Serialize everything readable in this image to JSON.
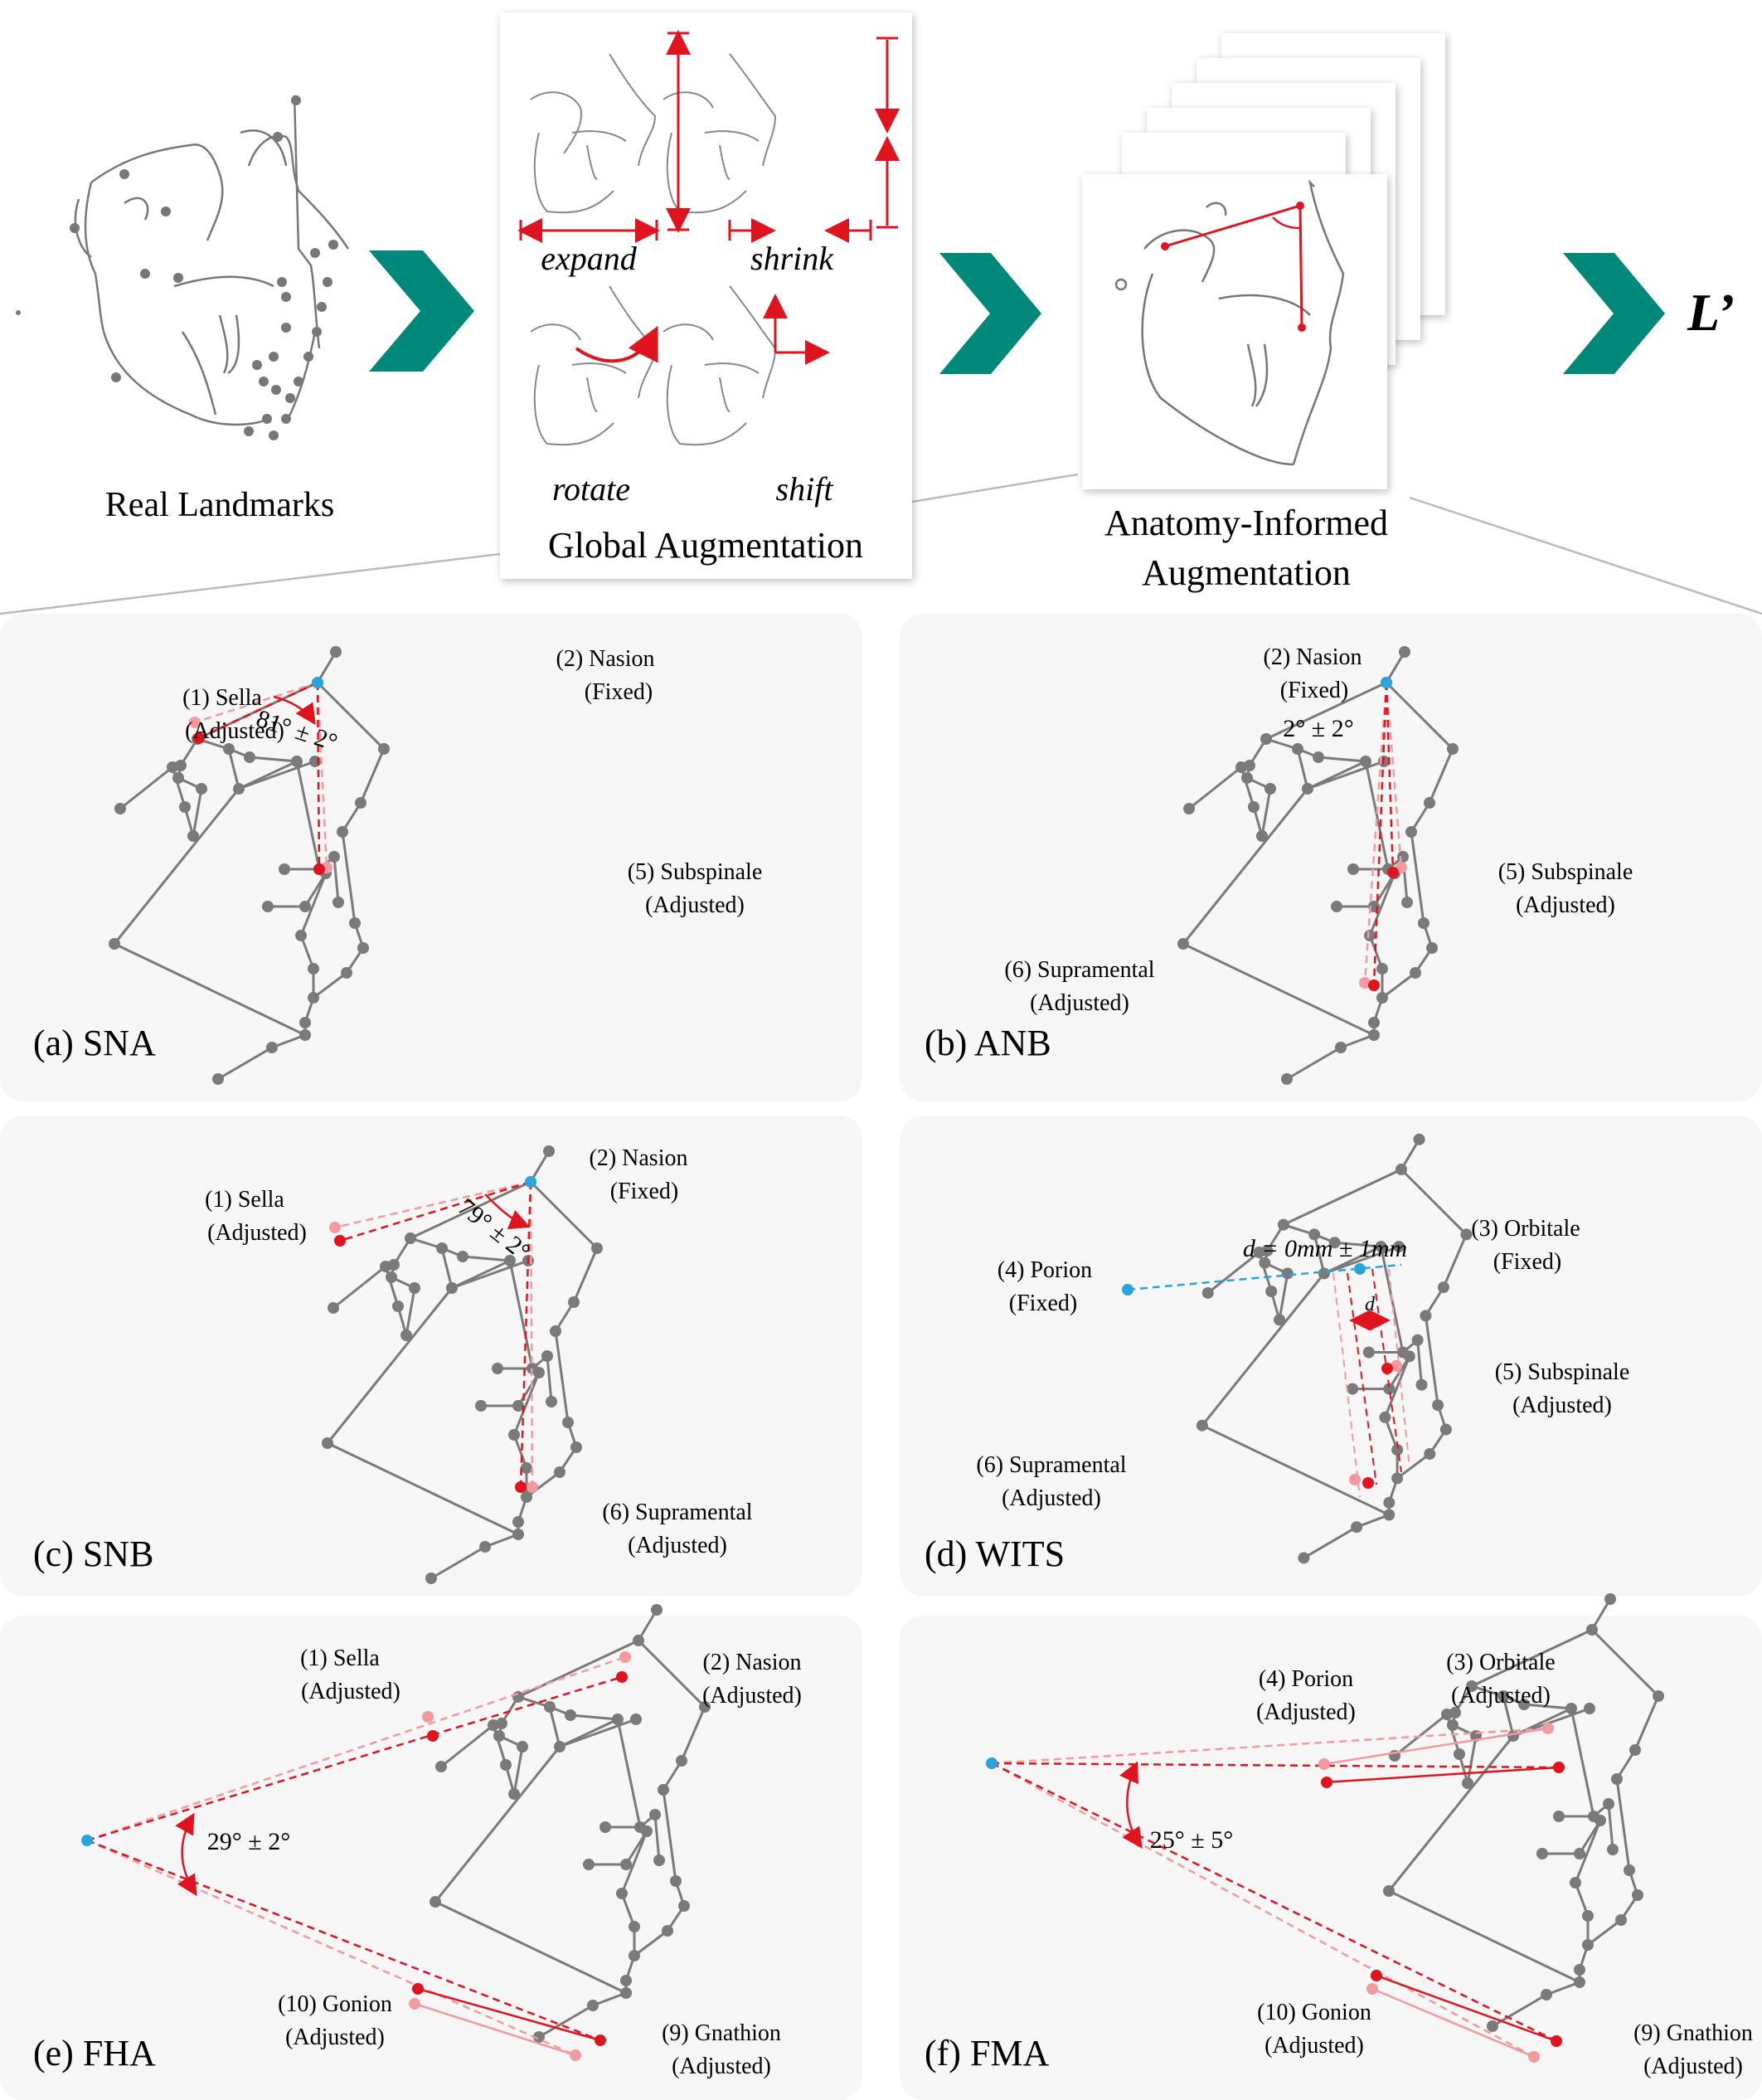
{
  "top": {
    "real_landmarks": "Real Landmarks",
    "global_augmentation": "Global Augmentation",
    "anatomy_line1": "Anatomy-Informed",
    "anatomy_line2": "Augmentation",
    "output": "L’",
    "ops": {
      "expand": "expand",
      "shrink": "shrink",
      "rotate": "rotate",
      "shift": "shift"
    }
  },
  "panels": {
    "a": {
      "caption": "(a) SNA",
      "angle": "81° ± 2°",
      "l1a": "(1) Sella",
      "l1b": "(Adjusted)",
      "l2a": "(2) Nasion",
      "l2b": "(Fixed)",
      "l3a": "(5) Subspinale",
      "l3b": "(Adjusted)"
    },
    "b": {
      "caption": "(b) ANB",
      "angle": "2° ± 2°",
      "l1a": "(2) Nasion",
      "l1b": "(Fixed)",
      "l2a": "(5) Subspinale",
      "l2b": "(Adjusted)",
      "l3a": "(6) Supramental",
      "l3b": "(Adjusted)"
    },
    "c": {
      "caption": "(c) SNB",
      "angle": "79° ± 2°",
      "l1a": "(1) Sella",
      "l1b": "(Adjusted)",
      "l2a": "(2) Nasion",
      "l2b": "(Fixed)",
      "l3a": "(6) Supramental",
      "l3b": "(Adjusted)"
    },
    "d": {
      "caption": "(d) WITS",
      "angle": "d = 0mm ± 1mm",
      "d_mark": "d",
      "l1a": "(4) Porion",
      "l1b": "(Fixed)",
      "l2a": "(3) Orbitale",
      "l2b": "(Fixed)",
      "l3a": "(5) Subspinale",
      "l3b": "(Adjusted)",
      "l4a": "(6) Supramental",
      "l4b": "(Adjusted)"
    },
    "e": {
      "caption": "(e) FHA",
      "angle": "29° ± 2°",
      "l1a": "(1) Sella",
      "l1b": "(Adjusted)",
      "l2a": "(2) Nasion",
      "l2b": "(Adjusted)",
      "l3a": "(10) Gonion",
      "l3b": "(Adjusted)",
      "l4a": "(9) Gnathion",
      "l4b": "(Adjusted)"
    },
    "f": {
      "caption": "(f) FMA",
      "angle": "25° ± 5°",
      "l1a": "(4) Porion",
      "l1b": "(Adjusted)",
      "l2a": "(3) Orbitale",
      "l2b": "(Adjusted)",
      "l3a": "(10) Gonion",
      "l3b": "(Adjusted)",
      "l4a": "(9) Gnathion",
      "l4b": "(Adjusted)"
    }
  },
  "colors": {
    "arrow": "#00897B",
    "red": "#E0141E",
    "pink": "#F29AA0",
    "blue": "#2AA5DC",
    "node": "#7A7A7A",
    "panel": "#F6F6F6"
  }
}
